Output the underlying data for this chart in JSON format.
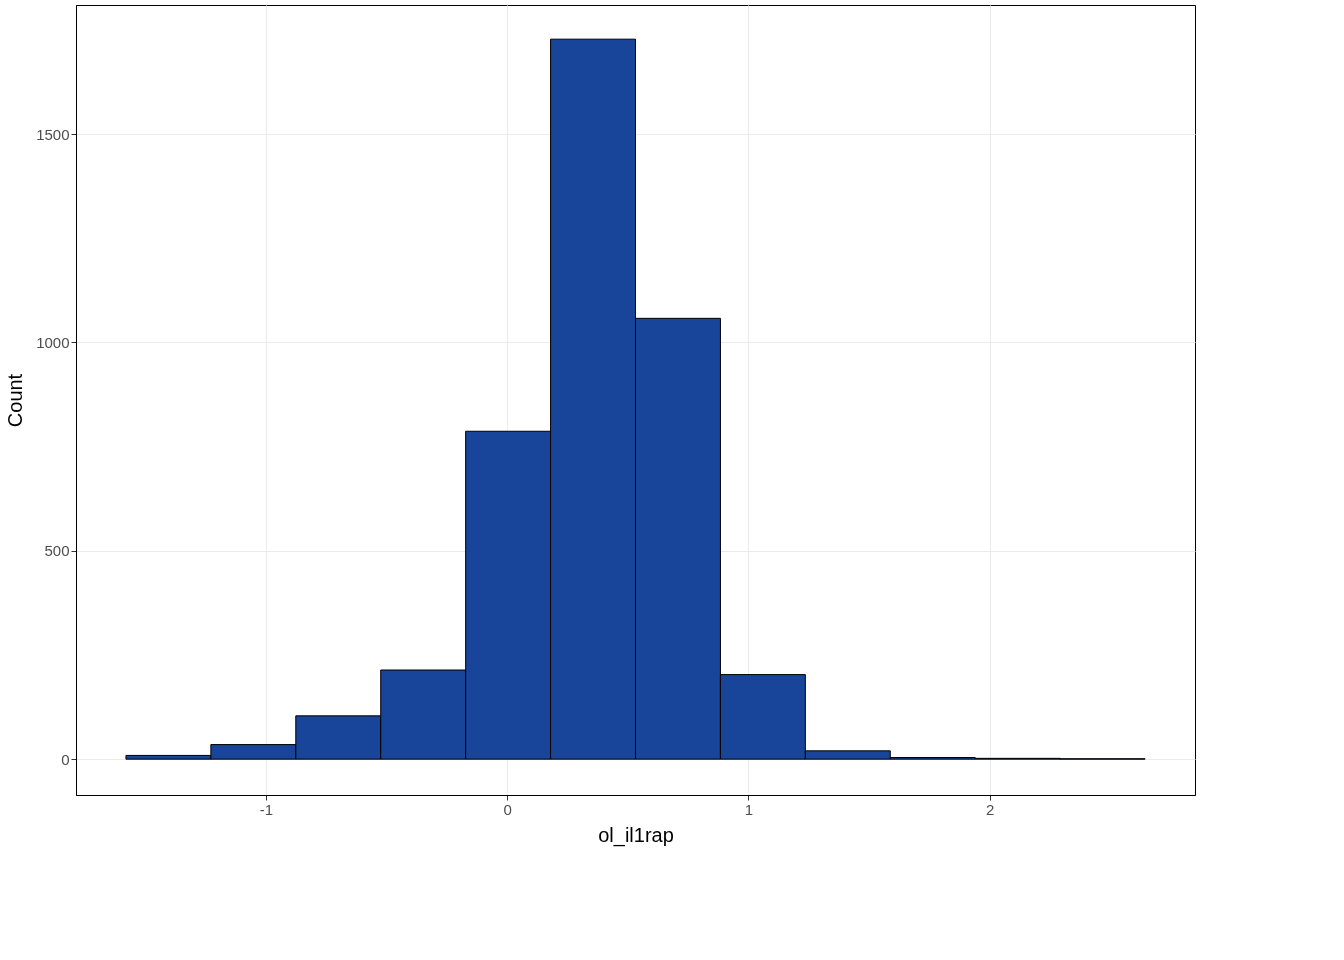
{
  "chart_data": {
    "type": "histogram",
    "xlabel": "ol_il1rap",
    "ylabel": "Count",
    "bins": [
      -1.58,
      -1.228,
      -0.876,
      -0.524,
      -0.172,
      0.18,
      0.532,
      0.884,
      1.236,
      1.588,
      1.94,
      2.292,
      2.644
    ],
    "values": [
      9,
      35,
      104,
      214,
      787,
      1728,
      1058,
      203,
      20,
      4,
      2,
      1
    ],
    "color": "#18449a",
    "xlim": [
      -1.787,
      2.851
    ],
    "xticks": [
      -1,
      0,
      1,
      2
    ],
    "ylim": [
      -86,
      1810
    ],
    "yticks": [
      0,
      500,
      1000,
      1500
    ],
    "grid": true
  }
}
